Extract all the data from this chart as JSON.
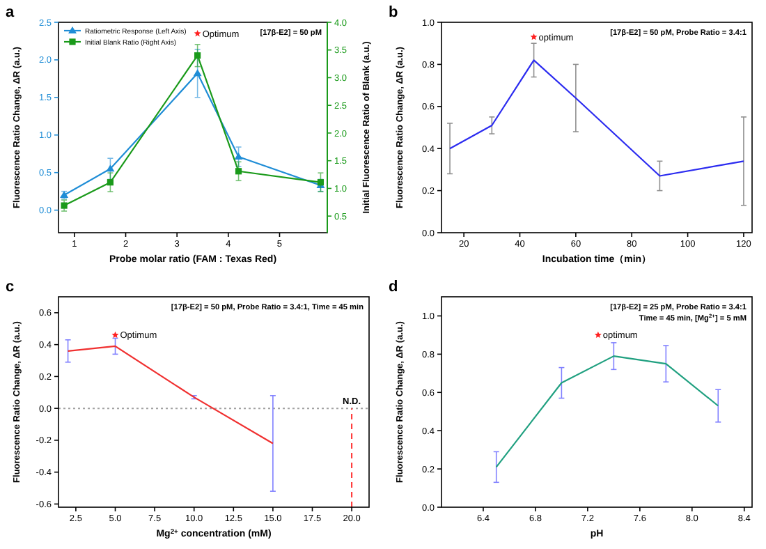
{
  "chart_data": [
    {
      "type": "line",
      "title": "a",
      "xlabel": "Probe molar ratio (FAM : Texas Red)",
      "ylabel": "Fluorescence Ratio Change, ΔR (a.u.)",
      "y2label": "Initial Fluorescence Ratio of Blank (a.u.)",
      "xlim": [
        0.69,
        5.93
      ],
      "xticks": [
        1,
        2,
        3,
        4,
        5
      ],
      "ylim": [
        -0.3,
        2.5
      ],
      "yticks": [
        {
          "value": 0,
          "label": "0.0"
        },
        {
          "value": 0.5,
          "label": "0.5"
        },
        {
          "value": 1,
          "label": "1.0"
        },
        {
          "value": 1.5,
          "label": "1.5"
        },
        {
          "value": 2,
          "label": "2.0"
        },
        {
          "value": 2.5,
          "label": "2.5"
        }
      ],
      "y2lim": [
        0.2,
        4.0
      ],
      "y2ticks": [
        {
          "value": 0.5,
          "label": "0.5"
        },
        {
          "value": 1,
          "label": "1.0"
        },
        {
          "value": 1.5,
          "label": "1.5"
        },
        {
          "value": 2,
          "label": "2.0"
        },
        {
          "value": 2.5,
          "label": "2.5"
        },
        {
          "value": 3,
          "label": "3.0"
        },
        {
          "value": 3.5,
          "label": "3.5"
        },
        {
          "value": 4,
          "label": "4.0"
        }
      ],
      "x": [
        0.8,
        1.7,
        3.4,
        4.2,
        5.8
      ],
      "legend": "top left",
      "grid": false,
      "series": [
        {
          "name": "Ratiometric Response (Left Axis)",
          "color": "#1f8dd6",
          "marker": "triangle",
          "values": [
            0.2,
            0.55,
            1.82,
            0.71,
            0.33
          ],
          "errors": [
            0.05,
            0.14,
            0.32,
            0.13,
            0.08
          ]
        },
        {
          "name": "Initial Blank Ratio (Right Axis)",
          "color": "#1a9a1a",
          "marker": "square",
          "axis": "y2",
          "values": [
            0.69,
            1.11,
            3.4,
            1.31,
            1.11
          ],
          "errors": [
            0.1,
            0.17,
            0.2,
            0.17,
            0.17
          ]
        }
      ],
      "annotations": [
        "[17β-E2] = 50 pM",
        {
          "text": "Optimum",
          "x": 3.4,
          "y": 2.35
        }
      ]
    },
    {
      "type": "line",
      "title": "b",
      "xlabel": "Incubation time（min）",
      "ylabel": "Fluorescence Ratio Change, ΔR (a.u.)",
      "xlim": [
        12,
        123
      ],
      "xticks": [
        20,
        40,
        60,
        80,
        100,
        120
      ],
      "ylim": [
        0,
        1
      ],
      "yticks": [
        {
          "value": 0,
          "label": "0.0"
        },
        {
          "value": 0.2,
          "label": "0.2"
        },
        {
          "value": 0.4,
          "label": "0.4"
        },
        {
          "value": 0.6,
          "label": "0.6"
        },
        {
          "value": 0.8,
          "label": "0.8"
        },
        {
          "value": 1,
          "label": "1.0"
        }
      ],
      "x": [
        15,
        30,
        45,
        60,
        90,
        120
      ],
      "grid": false,
      "series": [
        {
          "color": "#2b2bf0",
          "values": [
            0.4,
            0.51,
            0.82,
            0.64,
            0.27,
            0.34
          ],
          "errors": [
            0.12,
            0.04,
            0.08,
            0.16,
            0.07,
            0.21
          ]
        }
      ],
      "annotations": [
        "[17β-E2] = 50 pM,  Probe Ratio = 3.4:1",
        {
          "text": "optimum",
          "x": 45,
          "y": 0.93
        }
      ]
    },
    {
      "type": "line",
      "title": "c",
      "xlabel": "Mg$^{2+}$ concentration (mM)",
      "ylabel": "Fluorescence Ratio Change, ΔR (a.u.)",
      "xlim": [
        1.4,
        21.1
      ],
      "xticks": [
        {
          "value": 2.5,
          "label": "2.5"
        },
        {
          "value": 5,
          "label": "5.0"
        },
        {
          "value": 7.5,
          "label": "7.5"
        },
        {
          "value": 10,
          "label": "10.0"
        },
        {
          "value": 12.5,
          "label": "12.5"
        },
        {
          "value": 15,
          "label": "15.0"
        },
        {
          "value": 17.5,
          "label": "17.5"
        },
        {
          "value": 20,
          "label": "20.0"
        }
      ],
      "ylim": [
        -0.62,
        0.7
      ],
      "yticks": [
        {
          "value": -0.6,
          "label": "-0.6"
        },
        {
          "value": -0.4,
          "label": "-0.4"
        },
        {
          "value": -0.2,
          "label": "-0.2"
        },
        {
          "value": 0,
          "label": "0.0"
        },
        {
          "value": 0.2,
          "label": "0.2"
        },
        {
          "value": 0.4,
          "label": "0.4"
        },
        {
          "value": 0.6,
          "label": "0.6"
        }
      ],
      "x": [
        2,
        5,
        10,
        15
      ],
      "grid": false,
      "series": [
        {
          "color": "#f03030",
          "values": [
            0.36,
            0.39,
            0.07,
            -0.22
          ],
          "errors": [
            0.07,
            0.05,
            0.01,
            0.3
          ]
        }
      ],
      "ref_lines": [
        {
          "axis": "y",
          "value": 0,
          "color": "#a0a0a0",
          "line_style": "dotted"
        },
        {
          "axis": "x",
          "value": 20,
          "label": "N.D.",
          "color": "#ff3030",
          "line_style": "dashed"
        }
      ],
      "annotations": [
        "[17β-E2] = 50 pM, Probe Ratio = 3.4:1, Time = 45 min",
        {
          "text": "Optimum",
          "x": 5,
          "y": 0.46
        }
      ]
    },
    {
      "type": "line",
      "title": "d",
      "xlabel": "pH",
      "ylabel": "Fluorescence Ratio Change, ΔR (a.u.)",
      "xlim": [
        6.08,
        8.46
      ],
      "xticks": [
        {
          "value": 6.4,
          "label": "6.4"
        },
        {
          "value": 6.8,
          "label": "6.8"
        },
        {
          "value": 7.2,
          "label": "7.2"
        },
        {
          "value": 7.6,
          "label": "7.6"
        },
        {
          "value": 8,
          "label": "8.0"
        },
        {
          "value": 8.4,
          "label": "8.4"
        }
      ],
      "ylim": [
        0,
        1.1
      ],
      "yticks": [
        {
          "value": 0,
          "label": "0.0"
        },
        {
          "value": 0.2,
          "label": "0.2"
        },
        {
          "value": 0.4,
          "label": "0.4"
        },
        {
          "value": 0.6,
          "label": "0.6"
        },
        {
          "value": 0.8,
          "label": "0.8"
        },
        {
          "value": 1,
          "label": "1.0"
        }
      ],
      "x": [
        6.5,
        7.0,
        7.4,
        7.8,
        8.2
      ],
      "grid": false,
      "series": [
        {
          "color": "#20a080",
          "values": [
            0.21,
            0.65,
            0.79,
            0.75,
            0.53
          ],
          "errors": [
            0.08,
            0.08,
            0.07,
            0.095,
            0.085
          ]
        }
      ],
      "annotations": [
        "[17β-E2] = 25 pM,  Probe Ratio = 3.4:1",
        "Time = 45 min, [Mg$^{2+}$] = 5 mM",
        {
          "text": "optimum",
          "x": 7.28,
          "y": 0.9
        }
      ]
    }
  ]
}
